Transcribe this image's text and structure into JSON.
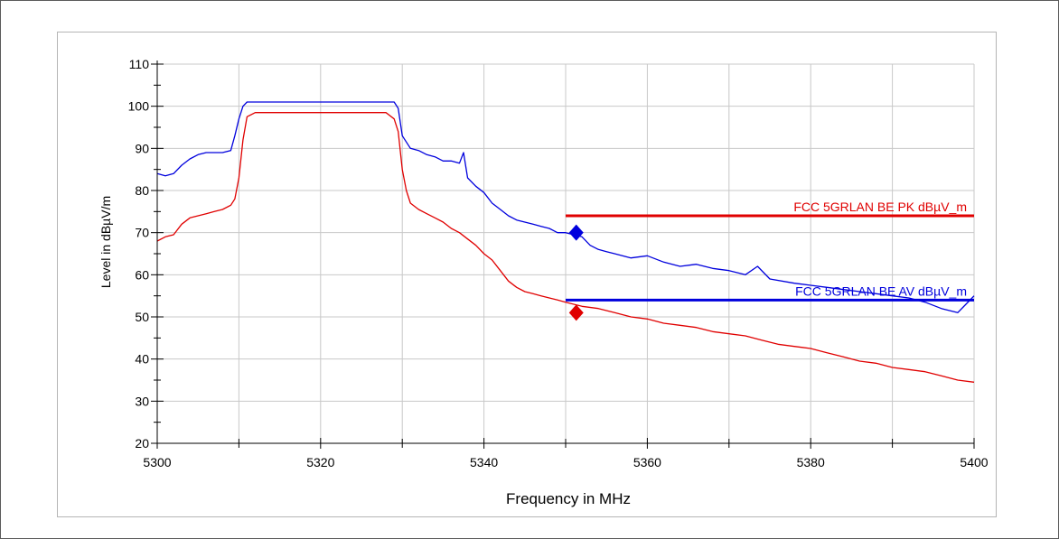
{
  "chart_data": {
    "type": "line",
    "title": "",
    "xlabel": "Frequency in MHz",
    "ylabel": "Level in dBµV/m",
    "xlim": [
      5300,
      5400
    ],
    "ylim": [
      20,
      110
    ],
    "x_ticks": [
      5300,
      5320,
      5340,
      5360,
      5380,
      5400
    ],
    "y_ticks": [
      20,
      30,
      40,
      50,
      60,
      70,
      80,
      90,
      100,
      110
    ],
    "grid": true,
    "colors": {
      "peak": "#0000dd",
      "average": "#e00000",
      "gridline": "#c8c8c8"
    },
    "series": [
      {
        "color": "#0000dd",
        "x": [
          5300,
          5301,
          5302,
          5303,
          5304,
          5305,
          5306,
          5307,
          5308,
          5309,
          5309.5,
          5310,
          5310.5,
          5311,
          5315,
          5320,
          5325,
          5328,
          5329,
          5329.5,
          5330,
          5331,
          5332,
          5333,
          5334,
          5335,
          5336,
          5337,
          5337.5,
          5338,
          5339,
          5340,
          5341,
          5342,
          5343,
          5344,
          5345,
          5346,
          5347,
          5348,
          5349,
          5350,
          5351,
          5352,
          5353,
          5354,
          5355,
          5356,
          5358,
          5360,
          5362,
          5364,
          5366,
          5368,
          5370,
          5372,
          5373.5,
          5375,
          5378,
          5380,
          5382,
          5384,
          5386,
          5388,
          5390,
          5392,
          5394,
          5396,
          5398,
          5399,
          5400
        ],
        "y": [
          84,
          83.5,
          84,
          86,
          87.5,
          88.5,
          89,
          89,
          89,
          89.5,
          93,
          97,
          100,
          101,
          101,
          101,
          101,
          101,
          101,
          99.5,
          93,
          90,
          89.5,
          88.5,
          88,
          87,
          87,
          86.5,
          89,
          83,
          81,
          79.5,
          77,
          75.5,
          74,
          73,
          72.5,
          72,
          71.5,
          71,
          70,
          70,
          69.5,
          69,
          67,
          66,
          65.5,
          65,
          64,
          64.5,
          63,
          62,
          62.5,
          61.5,
          61,
          60,
          62,
          59,
          58,
          57.5,
          57,
          56.5,
          56,
          55.5,
          55,
          54.5,
          53.5,
          52,
          51,
          53,
          55
        ]
      },
      {
        "color": "#e00000",
        "x": [
          5300,
          5301,
          5302,
          5303,
          5304,
          5305,
          5306,
          5307,
          5308,
          5309,
          5309.5,
          5310,
          5310.5,
          5311,
          5312,
          5315,
          5320,
          5325,
          5328,
          5329,
          5329.5,
          5330,
          5330.5,
          5331,
          5332,
          5333,
          5334,
          5335,
          5336,
          5337,
          5338,
          5339,
          5340,
          5341,
          5342,
          5343,
          5344,
          5345,
          5346,
          5347,
          5348,
          5349,
          5350,
          5352,
          5354,
          5356,
          5358,
          5360,
          5362,
          5364,
          5366,
          5368,
          5370,
          5372,
          5374,
          5376,
          5378,
          5380,
          5382,
          5384,
          5386,
          5388,
          5390,
          5392,
          5394,
          5396,
          5398,
          5400
        ],
        "y": [
          68,
          69,
          69.5,
          72,
          73.5,
          74,
          74.5,
          75,
          75.5,
          76.5,
          78,
          83,
          92,
          97.5,
          98.5,
          98.5,
          98.5,
          98.5,
          98.5,
          97,
          94,
          85,
          80,
          77,
          75.5,
          74.5,
          73.5,
          72.5,
          71,
          70,
          68.5,
          67,
          65,
          63.5,
          61,
          58.5,
          57,
          56,
          55.5,
          55,
          54.5,
          54,
          53.5,
          52.5,
          52,
          51,
          50,
          49.5,
          48.5,
          48,
          47.5,
          46.5,
          46,
          45.5,
          44.5,
          43.5,
          43,
          42.5,
          41.5,
          40.5,
          39.5,
          39,
          38,
          37.5,
          37,
          36,
          35,
          34.5
        ]
      }
    ],
    "limit_lines": [
      {
        "label": "FCC 5GRLAN BE PK dBµV_m",
        "color": "#e00000",
        "x": [
          5350,
          5400
        ],
        "y": 74
      },
      {
        "label": "FCC 5GRLAN BE AV dBµV_m",
        "color": "#0000dd",
        "x": [
          5350,
          5400
        ],
        "y": 54
      }
    ],
    "markers": [
      {
        "shape": "diamond",
        "color": "#0000dd",
        "x": 5351.3,
        "y": 70
      },
      {
        "shape": "diamond",
        "color": "#e00000",
        "x": 5351.3,
        "y": 51
      }
    ]
  }
}
